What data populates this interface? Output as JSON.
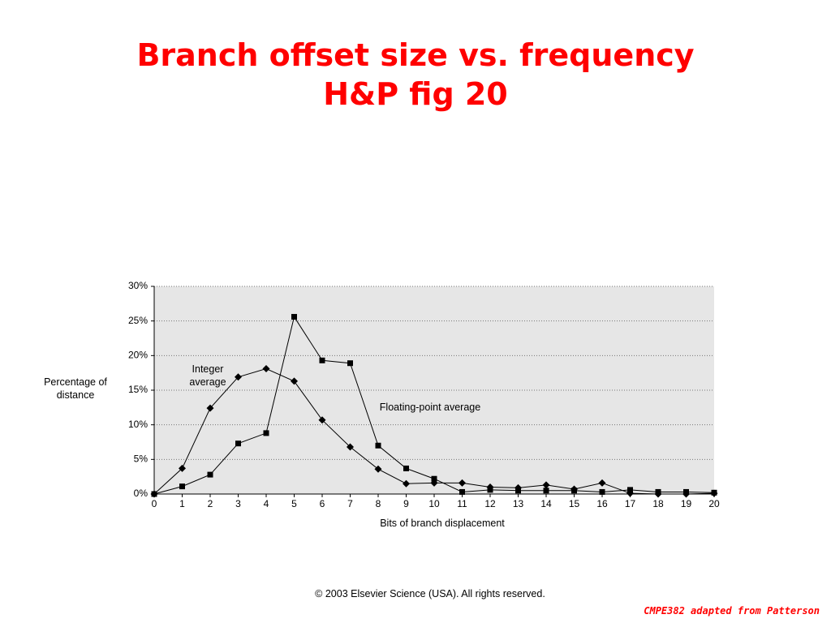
{
  "chart_data": {
    "type": "line",
    "title": "Branch offset size vs. frequency",
    "subtitle": "H&P fig 20",
    "x_label": "Bits of branch displacement",
    "y_label": "Percentage of distance",
    "x": [
      0,
      1,
      2,
      3,
      4,
      5,
      6,
      7,
      8,
      9,
      10,
      11,
      12,
      13,
      14,
      15,
      16,
      17,
      18,
      19,
      20
    ],
    "series": [
      {
        "name": "Integer average",
        "color": "#000000",
        "marker": "diamond",
        "values": [
          0,
          3.7,
          12.4,
          16.9,
          18.1,
          16.3,
          10.7,
          6.8,
          3.6,
          1.5,
          1.6,
          1.6,
          1.0,
          0.9,
          1.3,
          0.7,
          1.6,
          0.1,
          0,
          0,
          0.1
        ]
      },
      {
        "name": "Floating-point average",
        "color": "#000000",
        "marker": "square",
        "values": [
          0,
          1.1,
          2.8,
          7.3,
          8.8,
          25.6,
          19.3,
          18.9,
          7.0,
          3.7,
          2.2,
          0.3,
          0.6,
          0.5,
          0.5,
          0.5,
          0.3,
          0.6,
          0.3,
          0.3,
          0.2
        ]
      }
    ],
    "xlim": [
      0,
      20
    ],
    "xticks": [
      0,
      1,
      2,
      3,
      4,
      5,
      6,
      7,
      8,
      9,
      10,
      11,
      12,
      13,
      14,
      15,
      16,
      17,
      18,
      19,
      20
    ],
    "ylim": [
      0,
      30
    ],
    "yticks": [
      {
        "value": 0,
        "label": "0%"
      },
      {
        "value": 5,
        "label": "5%"
      },
      {
        "value": 10,
        "label": "10%"
      },
      {
        "value": 15,
        "label": "15%"
      },
      {
        "value": 20,
        "label": "20%"
      },
      {
        "value": 25,
        "label": "25%"
      },
      {
        "value": 30,
        "label": "30%"
      }
    ],
    "grid": true,
    "copyright": "© 2003 Elsevier Science (USA). All rights reserved.",
    "footer": "CMPE382 adapted from Patterson"
  }
}
